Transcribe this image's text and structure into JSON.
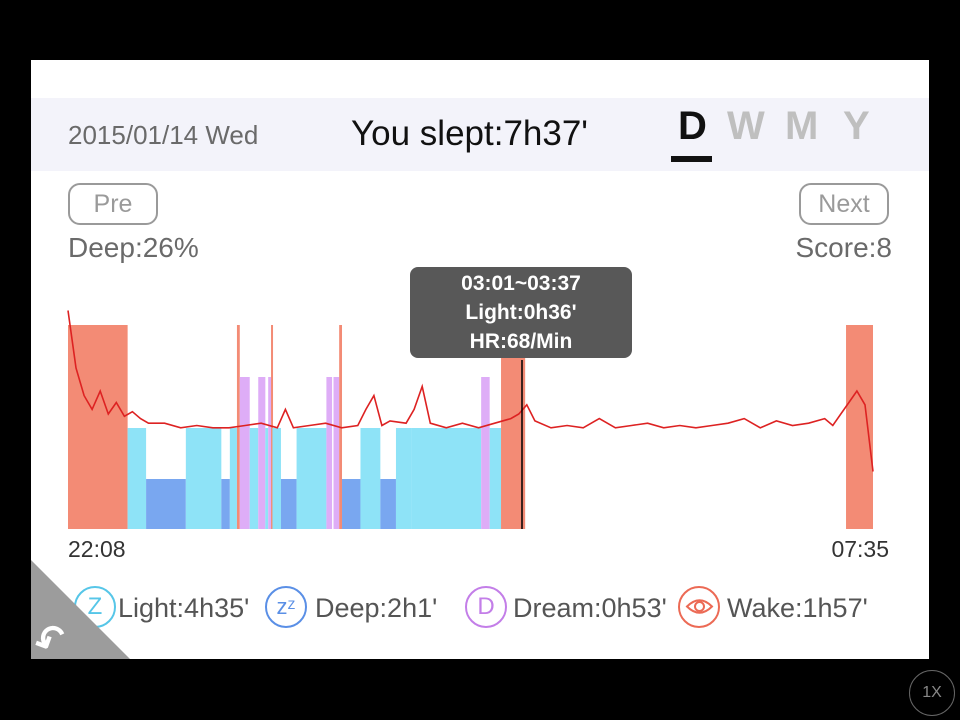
{
  "header": {
    "date": "2015/01/14 Wed",
    "slept": "You slept:7h37'",
    "periods": [
      "D",
      "W",
      "M",
      "Y"
    ],
    "active_period": "D"
  },
  "nav": {
    "pre_label": "Pre",
    "next_label": "Next"
  },
  "stats": {
    "deep": "Deep:26%",
    "score": "Score:8"
  },
  "tooltip": {
    "range": "03:01~03:37",
    "stage": "Light:0h36'",
    "hr": "HR:68/Min"
  },
  "time_axis": {
    "start": "22:08",
    "end": "07:35"
  },
  "legend": [
    {
      "name": "Light",
      "label": "Light:4h35'",
      "icon": "z-icon",
      "glyph": "Z",
      "color": "#56c6e8"
    },
    {
      "name": "Deep",
      "label": "Deep:2h1'",
      "icon": "zz-icon",
      "glyph": "zᶻ",
      "color": "#5a8fe6"
    },
    {
      "name": "Dream",
      "label": "Dream:0h53'",
      "icon": "d-icon",
      "glyph": "D",
      "color": "#c37ee8"
    },
    {
      "name": "Wake",
      "label": "Wake:1h57'",
      "icon": "eye-icon",
      "glyph": "",
      "color": "#ec6a55"
    }
  ],
  "colors": {
    "light": "#8ee3f7",
    "deep": "#79a7f0",
    "dream": "#deadf7",
    "wake": "#f38b75",
    "heart_rate": "#dd2222"
  },
  "chart_data": {
    "type": "area",
    "stages": [
      {
        "stage": "wake",
        "start": "22:08",
        "end": "22:50"
      },
      {
        "stage": "light",
        "start": "22:50",
        "end": "23:03"
      },
      {
        "stage": "deep",
        "start": "23:03",
        "end": "23:31"
      },
      {
        "stage": "light",
        "start": "23:31",
        "end": "23:56"
      },
      {
        "stage": "deep",
        "start": "23:56",
        "end": "00:02"
      },
      {
        "stage": "light",
        "start": "00:02",
        "end": "00:07"
      },
      {
        "stage": "wake",
        "start": "00:07",
        "end": "00:09"
      },
      {
        "stage": "dream",
        "start": "00:09",
        "end": "00:16"
      },
      {
        "stage": "light",
        "start": "00:16",
        "end": "00:22"
      },
      {
        "stage": "dream",
        "start": "00:22",
        "end": "00:27"
      },
      {
        "stage": "light",
        "start": "00:27",
        "end": "00:29"
      },
      {
        "stage": "dream",
        "start": "00:29",
        "end": "00:31"
      },
      {
        "stage": "wake",
        "start": "00:31",
        "end": "00:32"
      },
      {
        "stage": "light",
        "start": "00:32",
        "end": "00:38"
      },
      {
        "stage": "deep",
        "start": "00:38",
        "end": "00:49"
      },
      {
        "stage": "light",
        "start": "00:49",
        "end": "01:10"
      },
      {
        "stage": "dream",
        "start": "01:10",
        "end": "01:14"
      },
      {
        "stage": "dream",
        "start": "01:15",
        "end": "01:19"
      },
      {
        "stage": "wake",
        "start": "01:19",
        "end": "01:21"
      },
      {
        "stage": "deep",
        "start": "01:21",
        "end": "01:34"
      },
      {
        "stage": "light",
        "start": "01:34",
        "end": "01:48"
      },
      {
        "stage": "deep",
        "start": "01:48",
        "end": "01:59"
      },
      {
        "stage": "light",
        "start": "01:59",
        "end": "02:10"
      },
      {
        "stage": "light",
        "start": "02:10",
        "end": "02:59"
      },
      {
        "stage": "dream",
        "start": "02:59",
        "end": "03:05"
      },
      {
        "stage": "light",
        "start": "03:05",
        "end": "03:13"
      },
      {
        "stage": "wake",
        "start": "03:13",
        "end": "03:30"
      },
      {
        "stage": "wake",
        "start": "07:16",
        "end": "07:35"
      }
    ],
    "heart_rate": [
      [
        0,
        95
      ],
      [
        0.01,
        70
      ],
      [
        0.02,
        58
      ],
      [
        0.03,
        52
      ],
      [
        0.04,
        60
      ],
      [
        0.05,
        50
      ],
      [
        0.06,
        55
      ],
      [
        0.07,
        49
      ],
      [
        0.08,
        51
      ],
      [
        0.09,
        48
      ],
      [
        0.1,
        46
      ],
      [
        0.12,
        46
      ],
      [
        0.14,
        44
      ],
      [
        0.16,
        45
      ],
      [
        0.18,
        44
      ],
      [
        0.2,
        44
      ],
      [
        0.22,
        45
      ],
      [
        0.24,
        46
      ],
      [
        0.26,
        44
      ],
      [
        0.27,
        52
      ],
      [
        0.28,
        44
      ],
      [
        0.3,
        45
      ],
      [
        0.32,
        46
      ],
      [
        0.34,
        44
      ],
      [
        0.36,
        45
      ],
      [
        0.37,
        52
      ],
      [
        0.38,
        58
      ],
      [
        0.39,
        45
      ],
      [
        0.4,
        47
      ],
      [
        0.42,
        46
      ],
      [
        0.43,
        52
      ],
      [
        0.44,
        62
      ],
      [
        0.45,
        46
      ],
      [
        0.47,
        44
      ],
      [
        0.49,
        46
      ],
      [
        0.51,
        44
      ],
      [
        0.53,
        46
      ],
      [
        0.55,
        48
      ],
      [
        0.56,
        50
      ],
      [
        0.57,
        54
      ],
      [
        0.58,
        47
      ],
      [
        0.6,
        44
      ],
      [
        0.62,
        45
      ],
      [
        0.64,
        44
      ],
      [
        0.66,
        48
      ],
      [
        0.68,
        44
      ],
      [
        0.7,
        45
      ],
      [
        0.72,
        46
      ],
      [
        0.74,
        44
      ],
      [
        0.76,
        45
      ],
      [
        0.78,
        44
      ],
      [
        0.8,
        45
      ],
      [
        0.82,
        46
      ],
      [
        0.84,
        48
      ],
      [
        0.86,
        44
      ],
      [
        0.88,
        47
      ],
      [
        0.9,
        45
      ],
      [
        0.92,
        46
      ],
      [
        0.94,
        48
      ],
      [
        0.95,
        45
      ],
      [
        0.96,
        50
      ],
      [
        0.97,
        55
      ],
      [
        0.98,
        60
      ],
      [
        0.99,
        54
      ],
      [
        1,
        25
      ]
    ],
    "xlabel": "",
    "ylabel": ""
  }
}
